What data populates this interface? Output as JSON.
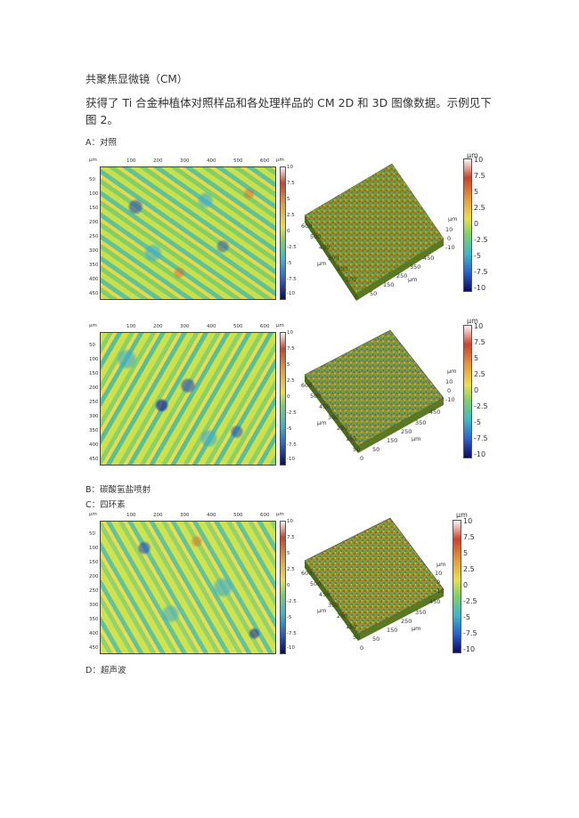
{
  "heading": "共聚焦显微镜（CM）",
  "paragraph": "获得了 Ti 合金种植体对照样品和各处理样品的 CM 2D 和 3D 图像数据。示例见下图 2。",
  "labels": {
    "a": "A：对照",
    "b": "B：碳酸氢盐喷射",
    "c": "C：四环素",
    "d": "D：超声波"
  },
  "units": {
    "um": "μm"
  },
  "plot2d": {
    "x_ticks": [
      "100",
      "200",
      "300",
      "400",
      "500",
      "600"
    ],
    "y_ticks": [
      "50",
      "100",
      "150",
      "200",
      "250",
      "300",
      "350",
      "400",
      "450"
    ],
    "colorbar_ticks": [
      "10",
      "7.5",
      "5",
      "2.5",
      "0",
      "-2.5",
      "-5",
      "-7.5",
      "-10"
    ]
  },
  "plot3d": {
    "colorbar_ticks": [
      "10",
      "7.5",
      "5",
      "2.5",
      "0",
      "-2.5",
      "-5",
      "-7.5",
      "-10"
    ],
    "z_ticks": [
      "10",
      "0",
      "-10"
    ],
    "left_axis_a": [
      "600",
      "500",
      "400",
      "300",
      "200",
      "100",
      "0"
    ],
    "left_axis_b": [
      "600",
      "500",
      "450",
      "350",
      "250",
      "150",
      "50",
      "0"
    ],
    "right_axis_a": [
      "0",
      "50",
      "150",
      "250",
      "350",
      "450"
    ],
    "right_axis_b": [
      "0",
      "50",
      "150",
      "250",
      "350",
      "450"
    ]
  }
}
